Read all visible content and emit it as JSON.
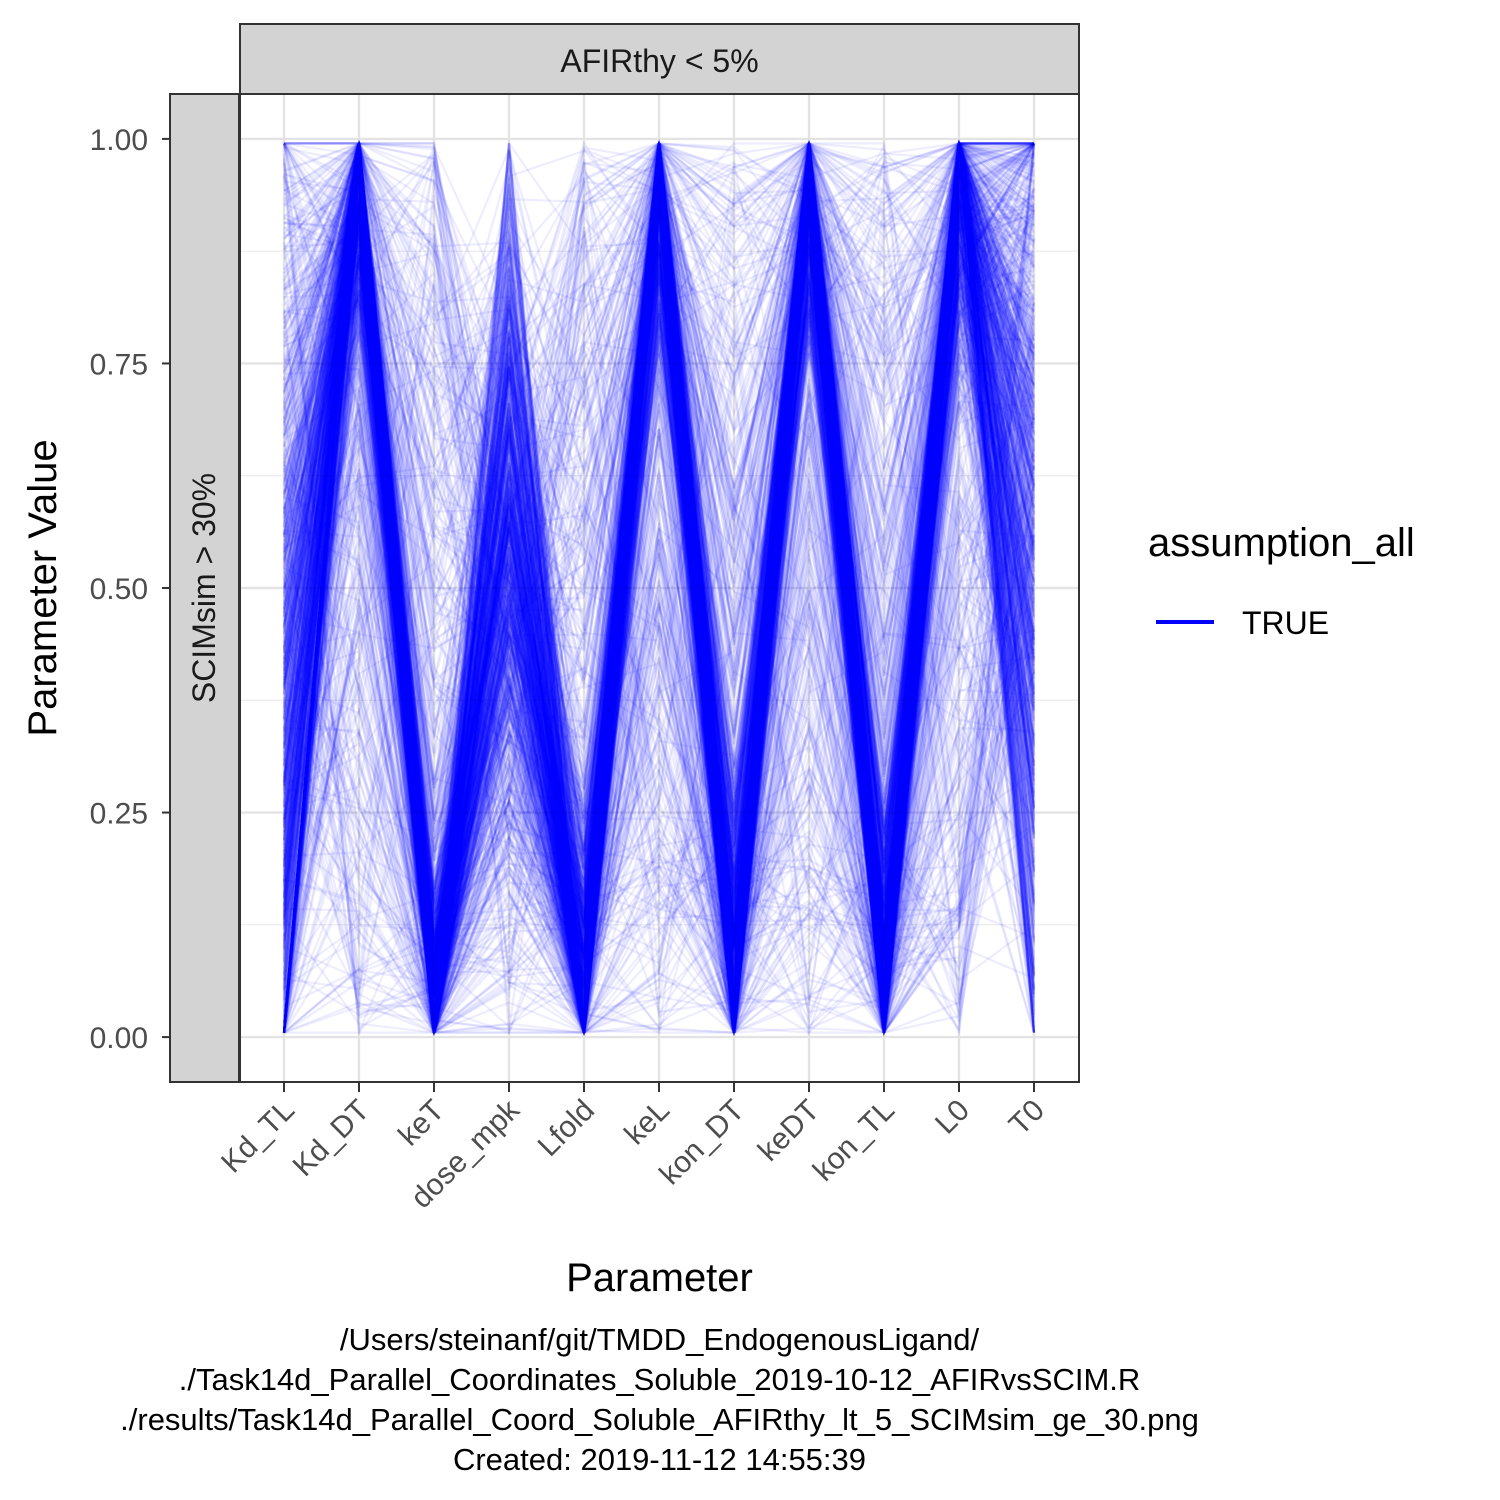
{
  "chart_data": {
    "type": "parallel_coordinates",
    "facet_column_label": "AFIRthy < 5%",
    "facet_row_label": "SCIMsim > 30%",
    "xlabel": "Parameter",
    "ylabel": "Parameter Value",
    "categories": [
      "Kd_TL",
      "Kd_DT",
      "keT",
      "dose_mpk",
      "Lfold",
      "keL",
      "kon_DT",
      "keDT",
      "kon_TL",
      "L0",
      "T0"
    ],
    "ylim": [
      -0.05,
      1.05
    ],
    "yticks": [
      0.0,
      0.25,
      0.5,
      0.75,
      1.0
    ],
    "ytick_labels": [
      "0.00",
      "0.25",
      "0.50",
      "0.75",
      "1.00"
    ],
    "grid": true,
    "legend": {
      "title": "assumption_all",
      "placement": "right",
      "entries": [
        {
          "label": "TRUE",
          "color": "#0000ff"
        }
      ]
    },
    "series_color": "#0000ff",
    "line_alpha": 0.07,
    "axis_tendency": {
      "description_values": [
        0.3,
        0.97,
        0.03,
        0.55,
        0.04,
        0.97,
        0.05,
        0.97,
        0.05,
        0.97,
        0.6
      ],
      "spread": [
        0.35,
        0.1,
        0.08,
        0.18,
        0.1,
        0.1,
        0.12,
        0.1,
        0.1,
        0.1,
        0.3
      ]
    },
    "line_count": 1000
  },
  "caption": {
    "lines": [
      "/Users/steinanf/git/TMDD_EndogenousLigand/",
      "./Task14d_Parallel_Coordinates_Soluble_2019-10-12_AFIRvsSCIM.R",
      "./results/Task14d_Parallel_Coord_Soluble_AFIRthy_lt_5_SCIMsim_ge_30.png",
      "Created: 2019-11-12 14:55:39"
    ]
  }
}
